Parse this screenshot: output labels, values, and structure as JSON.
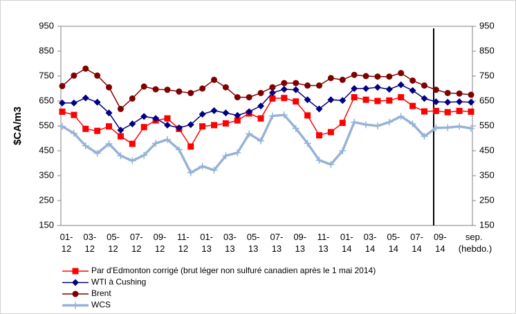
{
  "chart_data": {
    "type": "line",
    "ylabel": "$CA/m3",
    "categories": [
      "01-12",
      null,
      "03-12",
      null,
      "05-12",
      null,
      "07-12",
      null,
      "09-12",
      null,
      "11-12",
      null,
      "01-13",
      null,
      "03-13",
      null,
      "05-13",
      null,
      "07-13",
      null,
      "09-13",
      null,
      "11-13",
      null,
      "01-14",
      null,
      "03-14",
      null,
      "05-14",
      null,
      "07-14",
      null,
      "09-14",
      null,
      null,
      "sep. (hebdo.)"
    ],
    "series": [
      {
        "name": "Par d'Edmonton corrigé (brut léger non sulfuré canadien après le 1 mai 2014)",
        "color": "#ff0000",
        "marker": "square",
        "values": [
          607,
          594,
          538,
          530,
          548,
          508,
          478,
          545,
          572,
          580,
          538,
          467,
          548,
          553,
          560,
          572,
          600,
          580,
          660,
          662,
          648,
          592,
          512,
          525,
          562,
          665,
          655,
          650,
          652,
          665,
          630,
          608,
          610,
          605,
          610,
          607
        ]
      },
      {
        "name": "WTI à Cushing",
        "color": "#000080",
        "marker": "diamond",
        "values": [
          642,
          642,
          662,
          645,
          602,
          533,
          558,
          588,
          580,
          553,
          542,
          555,
          597,
          611,
          602,
          592,
          607,
          630,
          683,
          697,
          695,
          655,
          618,
          655,
          652,
          700,
          700,
          705,
          697,
          715,
          692,
          660,
          647,
          645,
          647,
          645
        ]
      },
      {
        "name": "Brent",
        "color": "#800000",
        "marker": "circle",
        "values": [
          710,
          752,
          780,
          752,
          705,
          618,
          660,
          708,
          697,
          695,
          688,
          682,
          700,
          735,
          705,
          665,
          665,
          682,
          705,
          722,
          722,
          712,
          712,
          742,
          735,
          755,
          750,
          748,
          748,
          762,
          732,
          712,
          695,
          682,
          680,
          675
        ]
      },
      {
        "name": "WCS",
        "color": "#95b3d7",
        "marker": "plus",
        "values": [
          548,
          520,
          470,
          440,
          478,
          430,
          410,
          432,
          480,
          495,
          455,
          362,
          388,
          372,
          430,
          442,
          518,
          490,
          590,
          594,
          540,
          480,
          412,
          395,
          450,
          565,
          555,
          550,
          565,
          588,
          558,
          508,
          542,
          543,
          548,
          540
        ]
      }
    ],
    "ylim": [
      150,
      950
    ],
    "yticks": [
      150,
      250,
      350,
      450,
      550,
      650,
      750,
      850,
      950
    ],
    "y2lim": [
      150,
      950
    ],
    "y2ticks": [
      150,
      250,
      350,
      450,
      550,
      650,
      750,
      850,
      950
    ],
    "grid": false
  }
}
